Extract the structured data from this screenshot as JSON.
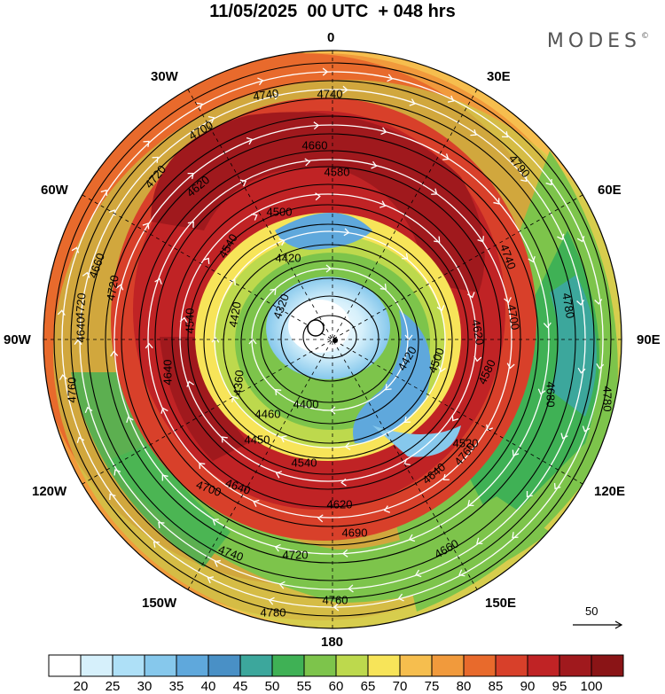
{
  "header": {
    "title": "11/05/2025  00 UTC  + 048 hrs",
    "brand": "MODES",
    "brand_mark": "©"
  },
  "longitude_labels": {
    "n0": "0",
    "n30e": "30E",
    "n60e": "60E",
    "e90": "90E",
    "s120e": "120E",
    "s150e": "150E",
    "s180": "180",
    "s150w": "150W",
    "s120w": "120W",
    "w90": "90W",
    "n60w": "60W",
    "n30w": "30W"
  },
  "reference_vector": {
    "label": "50"
  },
  "colorbar": {
    "ticks": [
      "20",
      "25",
      "30",
      "35",
      "40",
      "45",
      "50",
      "55",
      "60",
      "65",
      "70",
      "75",
      "80",
      "85",
      "90",
      "95",
      "100"
    ],
    "colors": [
      "#ffffff",
      "#d6f0fb",
      "#aee0f7",
      "#86c8ec",
      "#5fa8dc",
      "#4990c6",
      "#3ca79c",
      "#3fb155",
      "#7dc44b",
      "#bdd94d",
      "#f7e459",
      "#f6be4e",
      "#f19a3c",
      "#e86a2c",
      "#d8402a",
      "#c02325",
      "#a0191d",
      "#8a1416"
    ]
  },
  "contour_labels": [
    "4740",
    "4740",
    "4700",
    "4660",
    "4720",
    "4620",
    "4580",
    "4790",
    "4500",
    "4420",
    "4540",
    "4660",
    "4780",
    "4740",
    "4720",
    "4640",
    "4540",
    "4420",
    "4320",
    "4720",
    "4360",
    "4400",
    "4700",
    "4620",
    "4640",
    "4780",
    "4760",
    "4420",
    "4460",
    "4450",
    "4500",
    "4520",
    "4580",
    "4540",
    "4640",
    "4620",
    "4700",
    "4680",
    "4760",
    "4640",
    "4740",
    "4720",
    "4660",
    "4690",
    "4760",
    "4780"
  ]
}
